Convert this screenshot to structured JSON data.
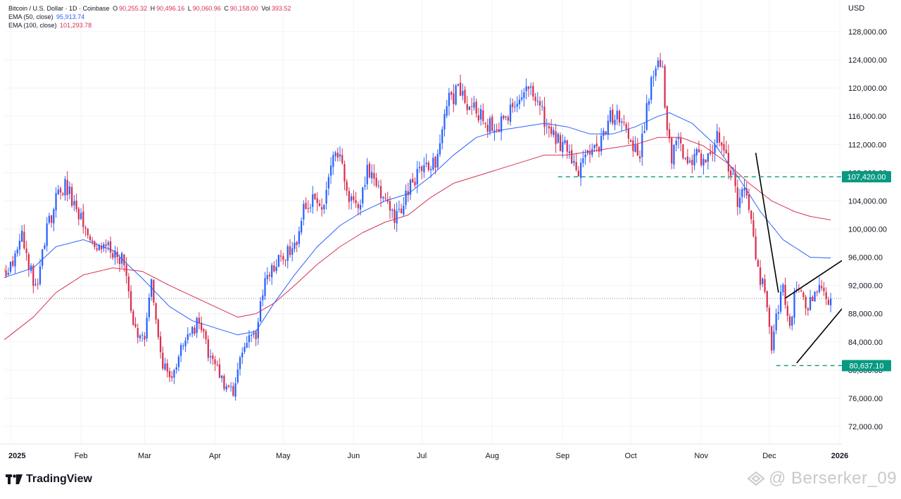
{
  "legend": {
    "symbol": "Bitcoin / U.S. Dollar · 1D · Coinbase",
    "o_label": "O",
    "o": "90,255.32",
    "h_label": "H",
    "h": "90,496.16",
    "l_label": "L",
    "l": "90,060.96",
    "c_label": "C",
    "c": "90,158.00",
    "vol_label": "Vol",
    "vol": "393.52",
    "ema50_label": "EMA (50, close)",
    "ema50": "95,913.74",
    "ema100_label": "EMA (100, close)",
    "ema100": "101,293.78"
  },
  "brand": {
    "name": "TradingView",
    "icon": "tradingview-logo-icon"
  },
  "watermark": {
    "text": "@ Berserker_09"
  },
  "colors": {
    "up": "#2962ff",
    "down": "#d9304f",
    "ema50": "#2962ff",
    "ema100": "#d9304f",
    "level": "#089981",
    "trend": "#000000",
    "grid": "#f0f3fa"
  },
  "chart_data": {
    "type": "candlestick",
    "title": "Bitcoin / U.S. Dollar · 1D · Coinbase",
    "currency_label": "USD",
    "ylim": [
      70000,
      130000
    ],
    "y_ticks": [
      72000,
      76000,
      80000,
      84000,
      88000,
      92000,
      96000,
      100000,
      104000,
      108000,
      112000,
      116000,
      120000,
      124000,
      128000
    ],
    "x_range_days": [
      -5,
      349
    ],
    "x_ticks": [
      {
        "label": "2025",
        "day": 0,
        "bold": true
      },
      {
        "label": "Feb",
        "day": 31
      },
      {
        "label": "Mar",
        "day": 59
      },
      {
        "label": "Apr",
        "day": 90
      },
      {
        "label": "May",
        "day": 120
      },
      {
        "label": "Jun",
        "day": 151
      },
      {
        "label": "Jul",
        "day": 181
      },
      {
        "label": "Aug",
        "day": 212
      },
      {
        "label": "Sep",
        "day": 243
      },
      {
        "label": "Oct",
        "day": 273
      },
      {
        "label": "Nov",
        "day": 304
      },
      {
        "label": "Dec",
        "day": 334
      },
      {
        "label": "2026",
        "day": 365,
        "bold": true
      }
    ],
    "price_series_keypoints": [
      [
        -4,
        95000
      ],
      [
        0,
        94000
      ],
      [
        6,
        99000
      ],
      [
        12,
        91500
      ],
      [
        17,
        100000
      ],
      [
        21,
        104000
      ],
      [
        25,
        106500
      ],
      [
        32,
        101500
      ],
      [
        38,
        96500
      ],
      [
        44,
        97500
      ],
      [
        51,
        95500
      ],
      [
        55,
        86000
      ],
      [
        60,
        84500
      ],
      [
        63,
        92000
      ],
      [
        68,
        81000
      ],
      [
        72,
        79000
      ],
      [
        76,
        83000
      ],
      [
        80,
        85000
      ],
      [
        84,
        87000
      ],
      [
        88,
        82500
      ],
      [
        95,
        78000
      ],
      [
        99,
        77000
      ],
      [
        101,
        80500
      ],
      [
        105,
        84000
      ],
      [
        109,
        85000
      ],
      [
        113,
        93500
      ],
      [
        118,
        95000
      ],
      [
        122,
        96500
      ],
      [
        126,
        97000
      ],
      [
        130,
        103500
      ],
      [
        134,
        104000
      ],
      [
        139,
        103000
      ],
      [
        142,
        108000
      ],
      [
        144,
        111500
      ],
      [
        147,
        109500
      ],
      [
        150,
        104500
      ],
      [
        154,
        102000
      ],
      [
        158,
        108500
      ],
      [
        162,
        107000
      ],
      [
        166,
        103500
      ],
      [
        170,
        101500
      ],
      [
        175,
        104500
      ],
      [
        180,
        108000
      ],
      [
        185,
        108800
      ],
      [
        189,
        109500
      ],
      [
        193,
        118000
      ],
      [
        198,
        119500
      ],
      [
        204,
        117500
      ],
      [
        209,
        116000
      ],
      [
        214,
        113500
      ],
      [
        220,
        116500
      ],
      [
        225,
        118800
      ],
      [
        229,
        120000
      ],
      [
        233,
        117500
      ],
      [
        239,
        113500
      ],
      [
        245,
        111500
      ],
      [
        251,
        108500
      ],
      [
        255,
        110500
      ],
      [
        260,
        111000
      ],
      [
        264,
        115500
      ],
      [
        269,
        116000
      ],
      [
        273,
        112500
      ],
      [
        278,
        110500
      ],
      [
        282,
        119000
      ],
      [
        285,
        123500
      ],
      [
        288,
        122000
      ],
      [
        290,
        115000
      ],
      [
        292,
        110500
      ],
      [
        295,
        114000
      ],
      [
        299,
        108500
      ],
      [
        303,
        110500
      ],
      [
        306,
        110000
      ],
      [
        309,
        109500
      ],
      [
        312,
        113500
      ],
      [
        315,
        110500
      ],
      [
        318,
        108500
      ],
      [
        321,
        103500
      ],
      [
        324,
        105500
      ],
      [
        327,
        100500
      ],
      [
        330,
        94000
      ],
      [
        332,
        92000
      ],
      [
        334,
        88500
      ],
      [
        336,
        83500
      ],
      [
        338,
        87500
      ],
      [
        341,
        91500
      ],
      [
        344,
        86500
      ],
      [
        347,
        92000
      ],
      [
        349,
        90500
      ],
      [
        352,
        88500
      ],
      [
        355,
        91500
      ],
      [
        358,
        92500
      ],
      [
        361,
        90200
      ]
    ],
    "ema50_keypoints": [
      [
        -4,
        93000
      ],
      [
        10,
        94500
      ],
      [
        20,
        97500
      ],
      [
        32,
        98500
      ],
      [
        45,
        97000
      ],
      [
        58,
        93000
      ],
      [
        70,
        89000
      ],
      [
        80,
        87000
      ],
      [
        90,
        86000
      ],
      [
        100,
        85000
      ],
      [
        108,
        85500
      ],
      [
        116,
        89500
      ],
      [
        125,
        93500
      ],
      [
        135,
        97500
      ],
      [
        145,
        100500
      ],
      [
        155,
        102500
      ],
      [
        165,
        104000
      ],
      [
        175,
        105000
      ],
      [
        185,
        107500
      ],
      [
        195,
        110500
      ],
      [
        205,
        113000
      ],
      [
        215,
        114000
      ],
      [
        225,
        114500
      ],
      [
        235,
        115000
      ],
      [
        245,
        114500
      ],
      [
        255,
        113500
      ],
      [
        265,
        113500
      ],
      [
        275,
        114500
      ],
      [
        285,
        116000
      ],
      [
        290,
        116500
      ],
      [
        300,
        115000
      ],
      [
        310,
        112000
      ],
      [
        320,
        107500
      ],
      [
        330,
        102500
      ],
      [
        340,
        98500
      ],
      [
        352,
        96000
      ],
      [
        361,
        95900
      ]
    ],
    "ema100_keypoints": [
      [
        -4,
        84000
      ],
      [
        10,
        87500
      ],
      [
        20,
        91000
      ],
      [
        32,
        93500
      ],
      [
        45,
        94500
      ],
      [
        58,
        94000
      ],
      [
        70,
        92000
      ],
      [
        80,
        90500
      ],
      [
        90,
        89000
      ],
      [
        100,
        87500
      ],
      [
        108,
        88000
      ],
      [
        116,
        89500
      ],
      [
        125,
        92000
      ],
      [
        135,
        95000
      ],
      [
        145,
        97500
      ],
      [
        155,
        99500
      ],
      [
        165,
        101000
      ],
      [
        175,
        102000
      ],
      [
        185,
        104500
      ],
      [
        195,
        106500
      ],
      [
        205,
        107500
      ],
      [
        215,
        108500
      ],
      [
        225,
        109500
      ],
      [
        235,
        110500
      ],
      [
        245,
        110500
      ],
      [
        255,
        111000
      ],
      [
        265,
        111500
      ],
      [
        275,
        112000
      ],
      [
        285,
        113000
      ],
      [
        295,
        113000
      ],
      [
        305,
        111800
      ],
      [
        315,
        109500
      ],
      [
        325,
        106500
      ],
      [
        335,
        104000
      ],
      [
        345,
        102500
      ],
      [
        352,
        101800
      ],
      [
        361,
        101300
      ]
    ],
    "horizontal_levels": [
      {
        "name": "resistance",
        "value": 107420.0,
        "label": "107,420.00",
        "from_day": 241
      },
      {
        "name": "support",
        "value": 80637.1,
        "label": "80,637.10",
        "from_day": 337
      }
    ],
    "current_price": {
      "value": 90158.0
    },
    "trendlines": [
      {
        "name": "drop-line",
        "points": [
          [
            328,
            110800
          ],
          [
            338,
            91000
          ]
        ]
      },
      {
        "name": "wedge-upper",
        "points": [
          [
            341,
            90200
          ],
          [
            370,
            96400
          ]
        ]
      },
      {
        "name": "wedge-lower",
        "points": [
          [
            346,
            81000
          ],
          [
            374,
            91800
          ]
        ]
      }
    ]
  }
}
